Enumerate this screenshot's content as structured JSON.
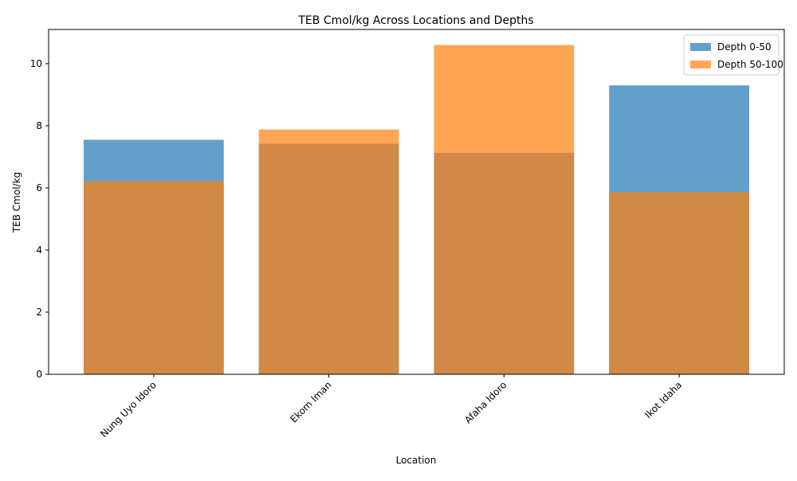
{
  "chart_data": {
    "type": "bar",
    "title": "TEB Cmol/kg Across Locations and Depths",
    "xlabel": "Location",
    "ylabel": "TEB Cmol/kg",
    "categories": [
      "Nung Uyo Idoro",
      "Ekom Iman",
      "Afaha Idoro",
      "Ikot Idaha"
    ],
    "series": [
      {
        "name": "Depth 0-50",
        "values": [
          7.55,
          7.42,
          7.13,
          9.3
        ],
        "color": "#1f77b4",
        "opacity": 0.7
      },
      {
        "name": "Depth 50-100",
        "values": [
          6.22,
          7.88,
          10.6,
          5.87
        ],
        "color": "#ff7f0e",
        "opacity": 0.7
      }
    ],
    "overlapping_bars": true,
    "ylim": [
      0,
      11.1
    ],
    "yticks": [
      0,
      2,
      4,
      6,
      8,
      10
    ],
    "grid": false,
    "legend_position": "top-right",
    "x_tick_rotation": 45
  }
}
